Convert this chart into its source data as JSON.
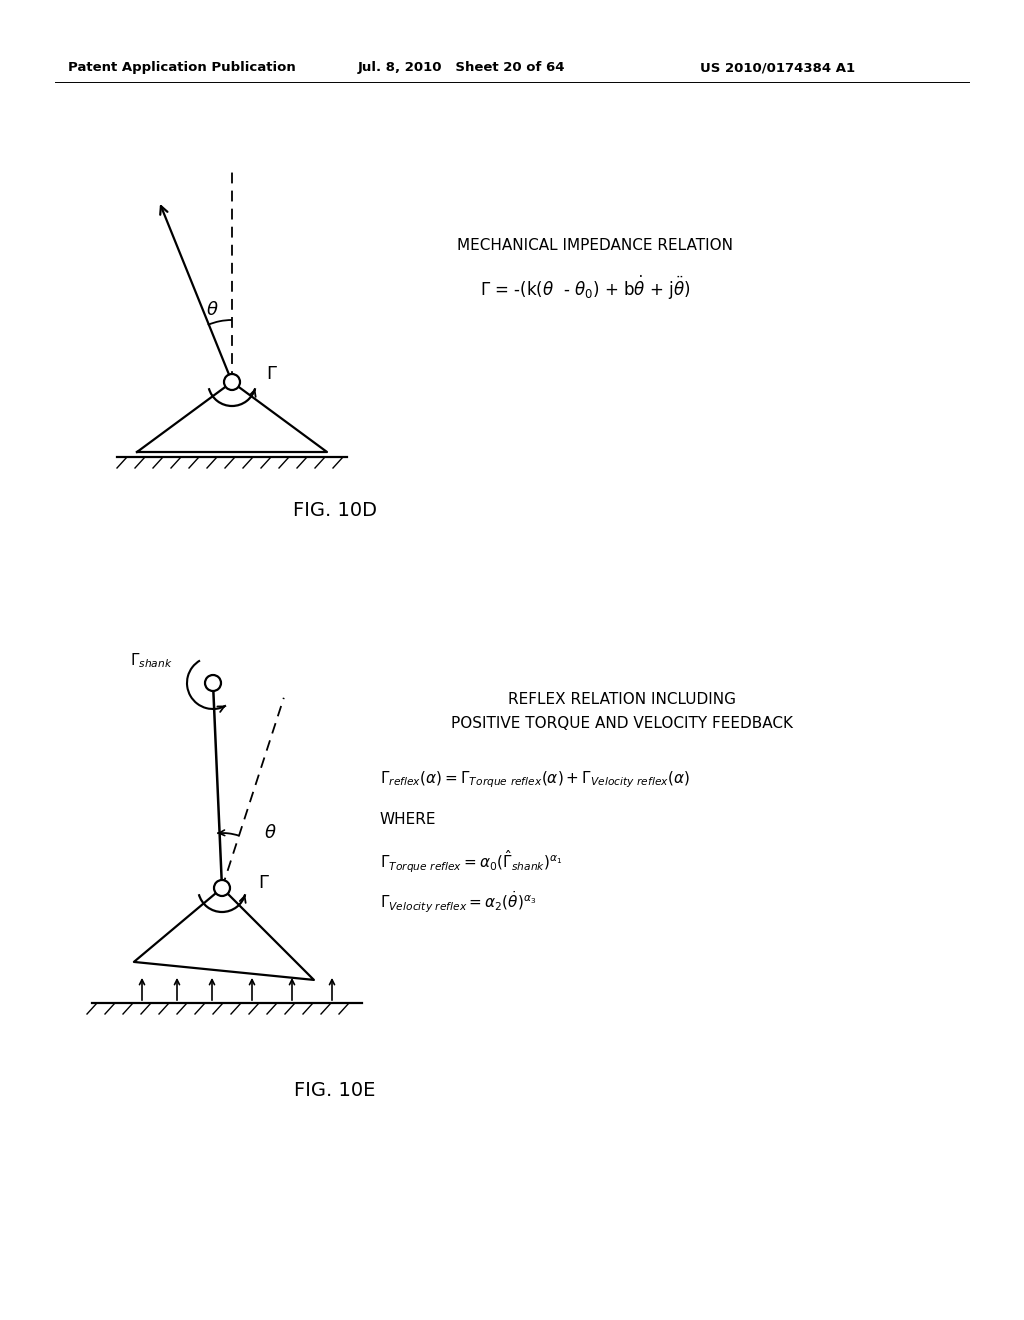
{
  "header_left": "Patent Application Publication",
  "header_mid": "Jul. 8, 2010   Sheet 20 of 64",
  "header_right": "US 2010/0174384 A1",
  "fig10d_label": "FIG. 10D",
  "fig10e_label": "FIG. 10E",
  "mech_title": "MECHANICAL IMPEDANCE RELATION",
  "reflex_title1": "REFLEX RELATION INCLUDING",
  "reflex_title2": "POSITIVE TORQUE AND VELOCITY FEEDBACK",
  "where_text": "WHERE",
  "bg_color": "#ffffff",
  "text_color": "#000000"
}
